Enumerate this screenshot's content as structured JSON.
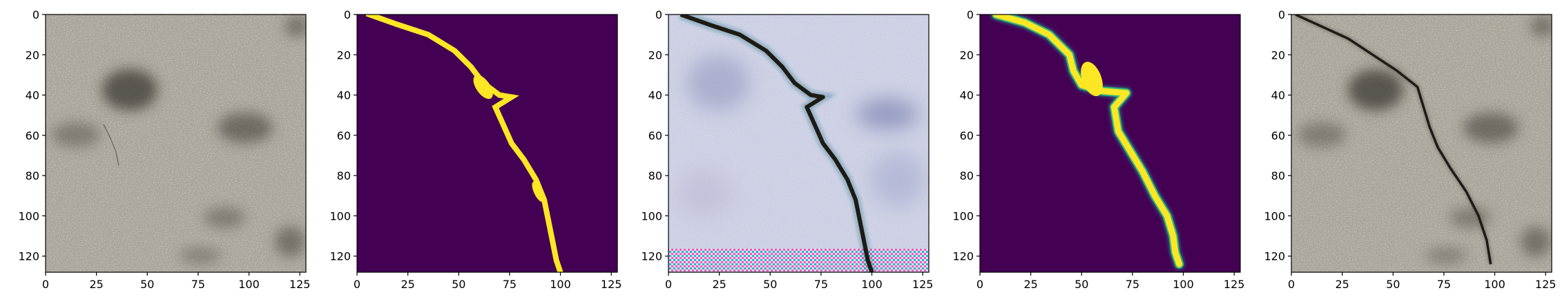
{
  "chart_data": [
    {
      "type": "image",
      "name": "input-photo",
      "xlim": [
        0,
        128
      ],
      "ylim": [
        128,
        0
      ],
      "xticks": [
        0,
        25,
        50,
        75,
        100,
        125
      ],
      "yticks": [
        0,
        20,
        40,
        60,
        80,
        100,
        120
      ],
      "content": "gray concrete texture with dark stains and faint crack"
    },
    {
      "type": "heatmap",
      "name": "ground-truth-mask",
      "colormap": "viridis",
      "xlim": [
        0,
        128
      ],
      "ylim": [
        128,
        0
      ],
      "xticks": [
        0,
        25,
        50,
        75,
        100,
        125
      ],
      "yticks": [
        0,
        20,
        40,
        60,
        80,
        100,
        120
      ],
      "crack_path": [
        [
          6,
          0
        ],
        [
          20,
          5
        ],
        [
          35,
          10
        ],
        [
          48,
          18
        ],
        [
          56,
          26
        ],
        [
          62,
          34
        ],
        [
          70,
          40
        ],
        [
          76,
          41
        ],
        [
          68,
          46
        ],
        [
          72,
          55
        ],
        [
          76,
          64
        ],
        [
          82,
          72
        ],
        [
          88,
          82
        ],
        [
          92,
          92
        ],
        [
          94,
          102
        ],
        [
          96,
          112
        ],
        [
          98,
          122
        ],
        [
          100,
          128
        ]
      ]
    },
    {
      "type": "image",
      "name": "generated-image",
      "xlim": [
        0,
        128
      ],
      "ylim": [
        128,
        0
      ],
      "xticks": [
        0,
        25,
        50,
        75,
        100,
        125
      ],
      "yticks": [
        0,
        20,
        40,
        60,
        80,
        100,
        120
      ],
      "content": "pastel noisy texture with dark crack and checkerboard artifacts at bottom"
    },
    {
      "type": "heatmap",
      "name": "predicted-mask",
      "colormap": "viridis",
      "xlim": [
        0,
        128
      ],
      "ylim": [
        128,
        0
      ],
      "xticks": [
        0,
        25,
        50,
        75,
        100,
        125
      ],
      "yticks": [
        0,
        20,
        40,
        60,
        80,
        100,
        120
      ],
      "crack_path": [
        [
          8,
          0
        ],
        [
          22,
          4
        ],
        [
          34,
          10
        ],
        [
          44,
          20
        ],
        [
          46,
          28
        ],
        [
          50,
          35
        ],
        [
          60,
          38
        ],
        [
          72,
          39
        ],
        [
          66,
          46
        ],
        [
          68,
          58
        ],
        [
          74,
          68
        ],
        [
          80,
          78
        ],
        [
          86,
          90
        ],
        [
          92,
          100
        ],
        [
          95,
          110
        ],
        [
          96,
          118
        ],
        [
          98,
          124
        ]
      ]
    },
    {
      "type": "image",
      "name": "output-photo",
      "xlim": [
        0,
        128
      ],
      "ylim": [
        128,
        0
      ],
      "xticks": [
        0,
        25,
        50,
        75,
        100,
        125
      ],
      "yticks": [
        0,
        20,
        40,
        60,
        80,
        100,
        120
      ],
      "crack_path": [
        [
          2,
          0
        ],
        [
          15,
          6
        ],
        [
          28,
          12
        ],
        [
          40,
          20
        ],
        [
          52,
          28
        ],
        [
          62,
          36
        ],
        [
          65,
          46
        ],
        [
          68,
          56
        ],
        [
          72,
          66
        ],
        [
          78,
          76
        ],
        [
          86,
          88
        ],
        [
          92,
          100
        ],
        [
          96,
          112
        ],
        [
          98,
          124
        ]
      ]
    }
  ],
  "colors": {
    "viridis_background": "#440154",
    "viridis_crack": "#fde725",
    "viridis_edge": "#35b779",
    "viridis_mid": "#21918c",
    "concrete_base": "#a8a397",
    "concrete_dark": "#5c574d",
    "crack_dark": "#1e1a14",
    "generated_base": "#cfd3e6"
  }
}
